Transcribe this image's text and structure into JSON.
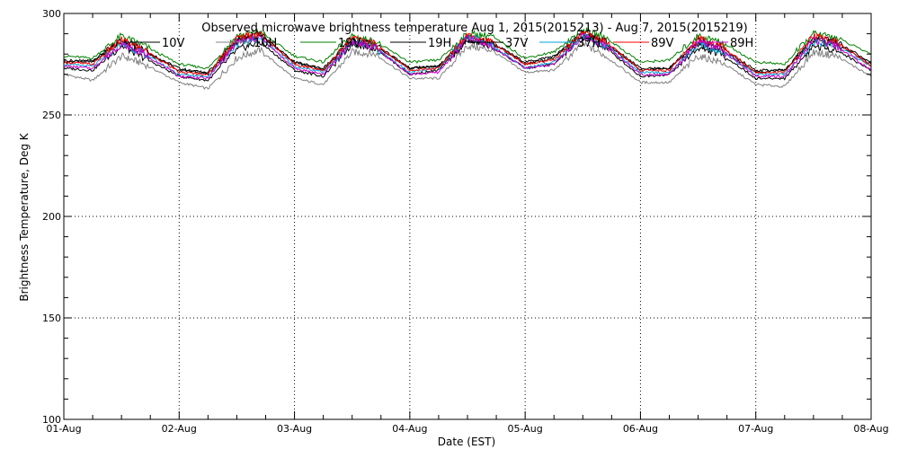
{
  "chart_data": {
    "type": "line",
    "title": "Observed microwave brightness temperature Aug  1, 2015(2015213) - Aug  7, 2015(2015219)",
    "xlabel": "Date (EST)",
    "ylabel": "Brightness Temperature, Deg K",
    "ylim": [
      100,
      300
    ],
    "yticks": [
      100,
      150,
      200,
      250,
      300
    ],
    "xlim": [
      0,
      7
    ],
    "xticks": [
      0,
      1,
      2,
      3,
      4,
      5,
      6,
      7
    ],
    "xtick_labels": [
      "01-Aug",
      "02-Aug",
      "03-Aug",
      "04-Aug",
      "05-Aug",
      "06-Aug",
      "07-Aug",
      "08-Aug"
    ],
    "grid": true,
    "legend_position": "top",
    "x_units": "days since 01-Aug",
    "x": [
      0,
      0.25,
      0.5,
      0.7,
      1,
      1.25,
      1.5,
      1.7,
      2,
      2.25,
      2.5,
      2.7,
      3,
      3.25,
      3.5,
      3.7,
      4,
      4.25,
      4.5,
      4.7,
      5,
      5.25,
      5.5,
      5.7,
      6,
      6.25,
      6.5,
      6.7,
      7
    ],
    "series": [
      {
        "name": "10V",
        "color": "#000000",
        "values": [
          276,
          277,
          286,
          281,
          273,
          270,
          286,
          289,
          276,
          272,
          287,
          284,
          273,
          274,
          288,
          286,
          276,
          279,
          290,
          285,
          272,
          273,
          285,
          282,
          271,
          272,
          287,
          285,
          275
        ]
      },
      {
        "name": "10H",
        "color": "#808080",
        "values": [
          270,
          267,
          279,
          275,
          266,
          263,
          278,
          282,
          268,
          265,
          281,
          280,
          268,
          268,
          284,
          282,
          271,
          272,
          285,
          279,
          266,
          266,
          279,
          276,
          265,
          264,
          281,
          279,
          269
        ]
      },
      {
        "name": "19V",
        "color": "#008000",
        "values": [
          279,
          278,
          289,
          284,
          275,
          273,
          289,
          291,
          279,
          276,
          289,
          286,
          276,
          277,
          290,
          289,
          278,
          281,
          292,
          288,
          276,
          277,
          289,
          286,
          276,
          275,
          290,
          288,
          280
        ]
      },
      {
        "name": "19H",
        "color": "#000000",
        "values": [
          273,
          272,
          284,
          278,
          269,
          267,
          282,
          286,
          272,
          269,
          285,
          283,
          270,
          272,
          287,
          284,
          273,
          275,
          288,
          283,
          269,
          270,
          283,
          280,
          268,
          268,
          284,
          282,
          272
        ]
      },
      {
        "name": "37V",
        "color": "#000000",
        "values": [
          277,
          276,
          287,
          282,
          272,
          271,
          287,
          290,
          276,
          273,
          287,
          285,
          273,
          274,
          287,
          286,
          275,
          278,
          290,
          286,
          273,
          273,
          287,
          283,
          272,
          272,
          288,
          286,
          276
        ]
      },
      {
        "name": "37H",
        "color": "#00a0e0",
        "values": [
          275,
          274,
          285,
          280,
          270,
          269,
          285,
          288,
          274,
          271,
          286,
          283,
          271,
          273,
          289,
          285,
          273,
          276,
          289,
          284,
          271,
          271,
          285,
          281,
          270,
          270,
          286,
          284,
          274
        ]
      },
      {
        "name": "89V",
        "color": "#ff0000",
        "values": [
          276,
          275,
          287,
          282,
          271,
          270,
          288,
          290,
          275,
          272,
          288,
          285,
          272,
          273,
          290,
          286,
          275,
          277,
          291,
          286,
          272,
          272,
          288,
          284,
          271,
          271,
          289,
          286,
          274
        ]
      },
      {
        "name": "89H",
        "color": "#d000d0",
        "values": [
          274,
          273,
          285,
          280,
          269,
          268,
          286,
          288,
          273,
          270,
          286,
          283,
          270,
          271,
          288,
          284,
          273,
          275,
          289,
          284,
          270,
          270,
          286,
          282,
          269,
          269,
          287,
          284,
          272
        ]
      }
    ]
  }
}
